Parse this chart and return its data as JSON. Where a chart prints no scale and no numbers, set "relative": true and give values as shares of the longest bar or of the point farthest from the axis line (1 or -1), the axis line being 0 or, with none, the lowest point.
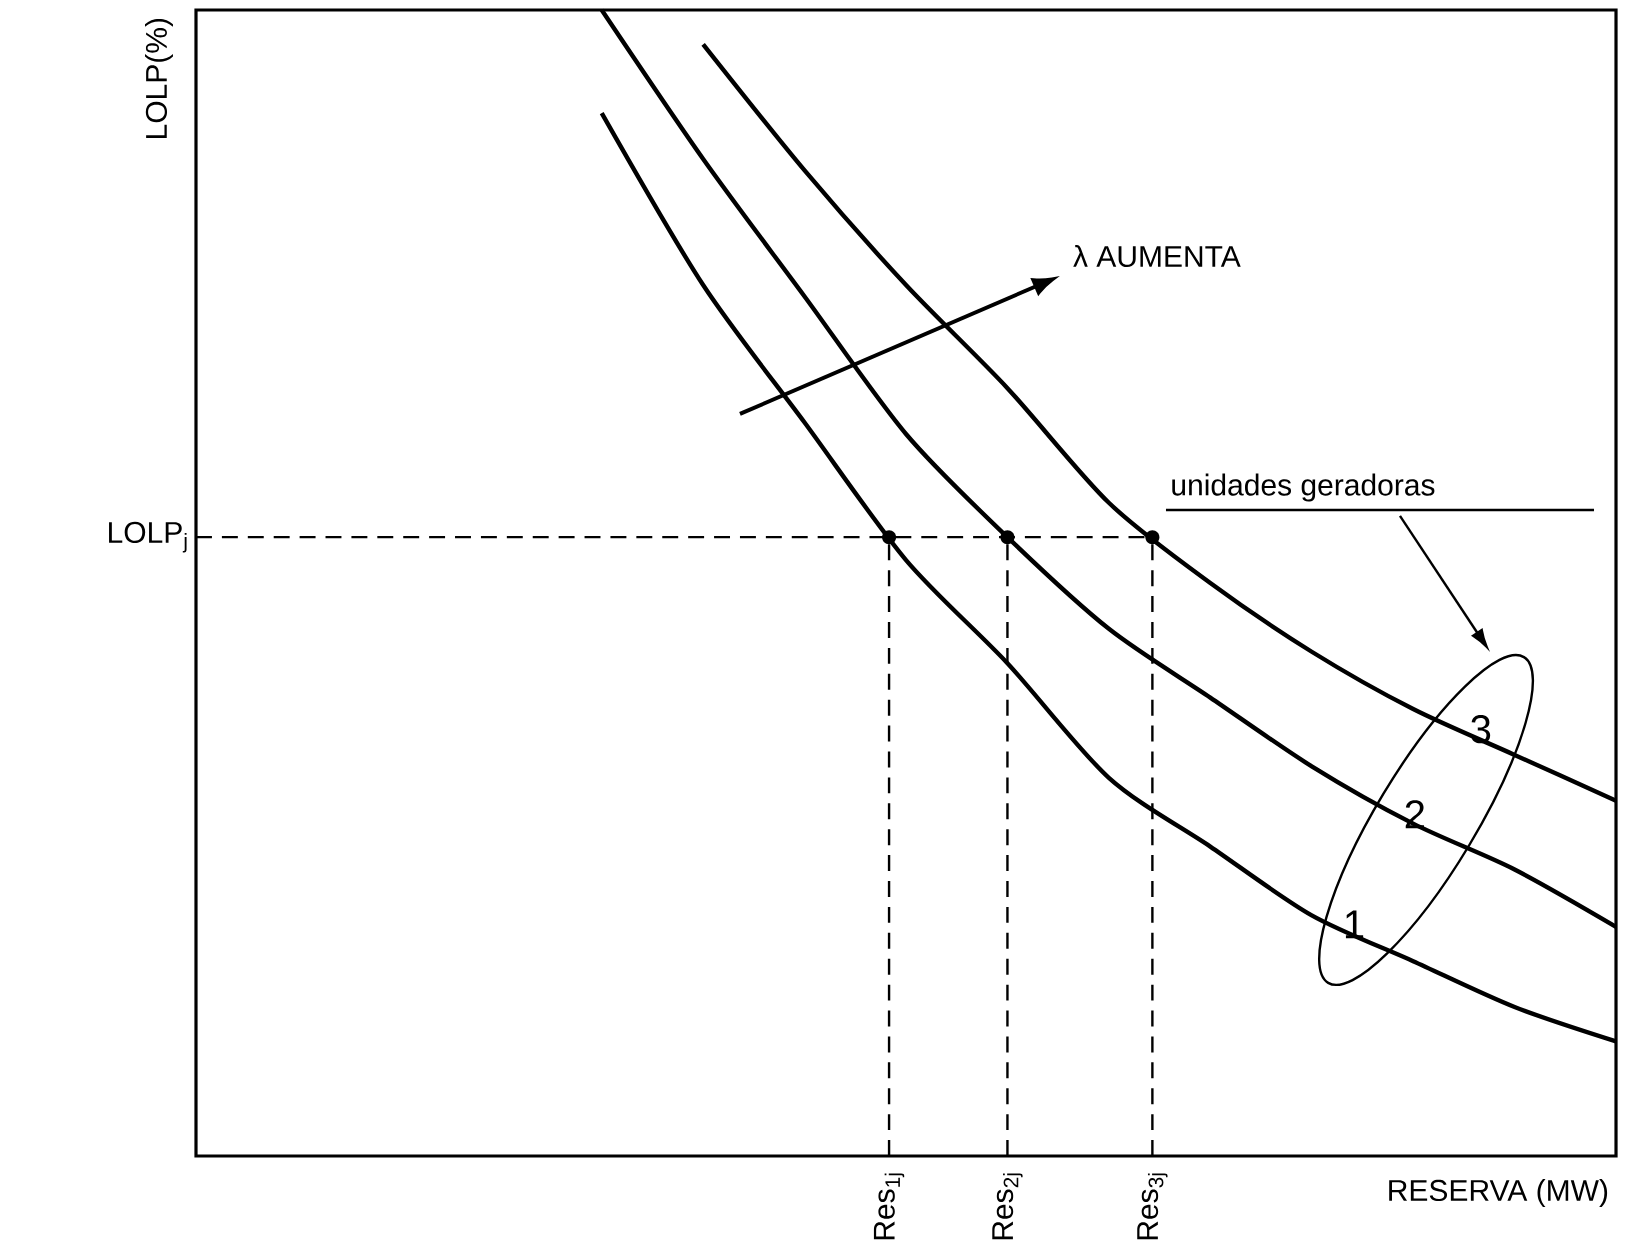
{
  "chart_data": {
    "type": "line",
    "relative": true,
    "xlabel": "RESERVA (MW)",
    "ylabel": "LOLP(%)",
    "categories": [
      null,
      null,
      null,
      null,
      null,
      null,
      null,
      null,
      null,
      null,
      null,
      null,
      null,
      null,
      null
    ],
    "series": [
      {
        "name": "1",
        "color": "#000000",
        "values": [
          null,
          null,
          null,
          null,
          0.91,
          0.76,
          0.64,
          0.52,
          0.43,
          0.33,
          0.27,
          0.21,
          0.17,
          0.13,
          0.1
        ]
      },
      {
        "name": "2",
        "color": "#000000",
        "values": [
          null,
          null,
          null,
          null,
          1.0,
          0.87,
          0.75,
          0.63,
          0.54,
          0.46,
          0.4,
          0.34,
          0.29,
          0.25,
          0.2
        ]
      },
      {
        "name": "3",
        "color": "#000000",
        "values": [
          null,
          null,
          null,
          null,
          null,
          0.97,
          0.86,
          0.76,
          0.67,
          0.57,
          0.5,
          0.44,
          0.39,
          0.35,
          0.31
        ]
      }
    ],
    "ref_lines": [
      {
        "axis": "y",
        "value": 0.54,
        "label": "LOLP$_{j}$",
        "line_style": "dashed"
      }
    ],
    "annotations": [
      "λ AUMENTA",
      "unidades geradoras",
      "Res$_{1j}$",
      "Res$_{2j}$",
      "Res$_{3j}$"
    ],
    "legend": false,
    "marker": "none",
    "line_style": "solid"
  }
}
